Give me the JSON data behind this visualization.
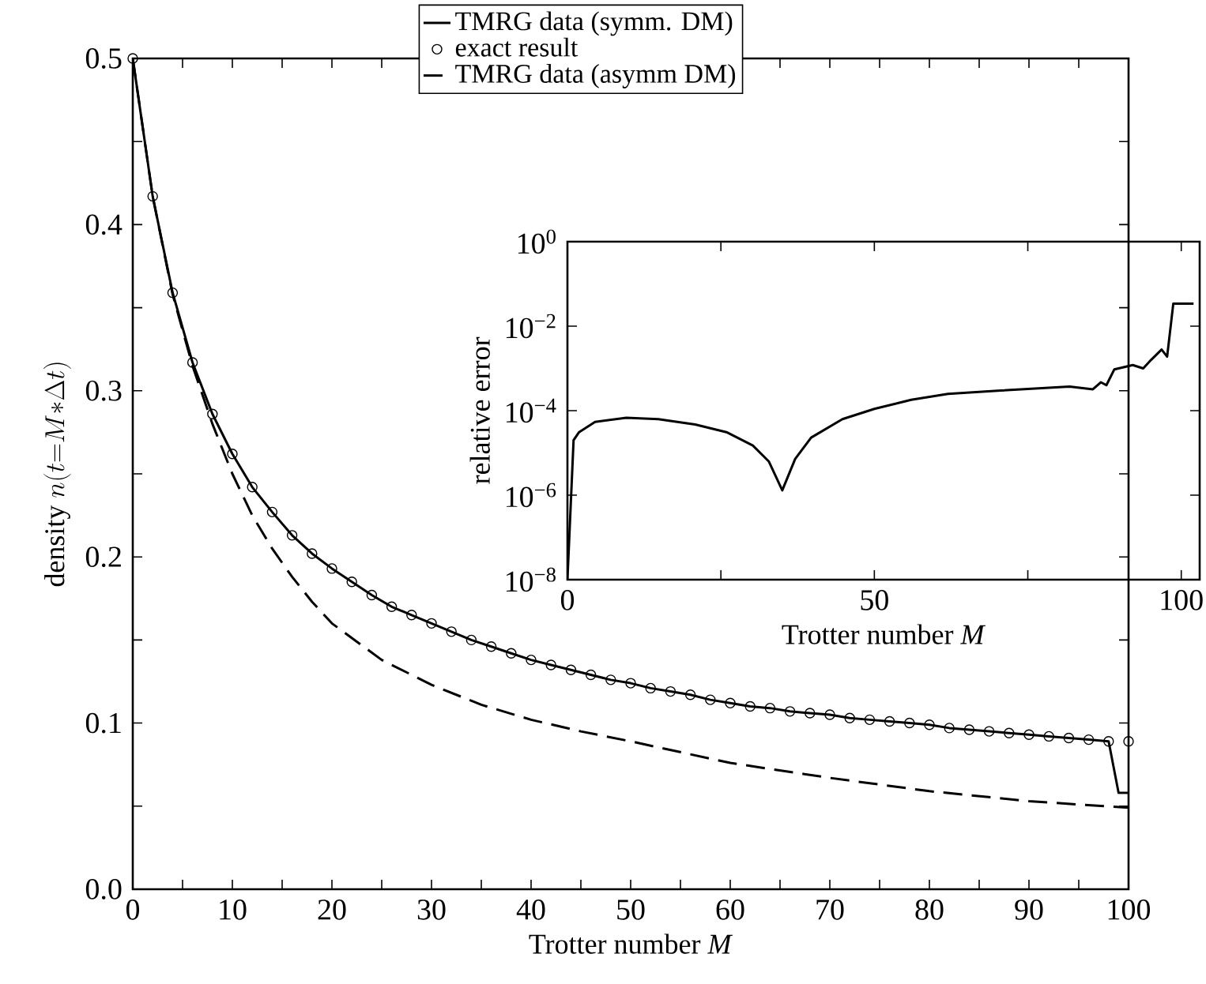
{
  "chart_data": [
    {
      "type": "line",
      "xlabel": "Trotter number *M*",
      "ylabel": "\\mathrm{density}\\ n(t{=}M{*}\\Delta t)",
      "xlim": [
        0,
        100
      ],
      "ylim": [
        0,
        0.5
      ],
      "xticks": [
        0,
        {
          "value": 5,
          "label": null
        },
        10,
        {
          "value": 15,
          "label": null
        },
        20,
        {
          "value": 25,
          "label": null
        },
        30,
        {
          "value": 35,
          "label": null
        },
        40,
        {
          "value": 45,
          "label": null
        },
        50,
        {
          "value": 55,
          "label": null
        },
        60,
        {
          "value": 65,
          "label": null
        },
        70,
        {
          "value": 75,
          "label": null
        },
        80,
        {
          "value": 85,
          "label": null
        },
        90,
        {
          "value": 95,
          "label": null
        },
        100
      ],
      "yticks": [
        {
          "value": 0,
          "label": "0.0"
        },
        {
          "value": 0.05,
          "label": null
        },
        0.1,
        {
          "value": 0.15,
          "label": null
        },
        0.2,
        {
          "value": 0.25,
          "label": null
        },
        0.3,
        {
          "value": 0.35,
          "label": null
        },
        0.4,
        {
          "value": 0.45,
          "label": null
        },
        0.5
      ],
      "legend": "top",
      "series": [
        {
          "name": "TMRG data (symm. DM)",
          "color": "#000000",
          "line_style": "solid",
          "x": [
            0,
            2,
            4,
            6,
            8,
            10,
            12,
            14,
            16,
            18,
            20,
            22,
            24,
            26,
            28,
            30,
            32,
            34,
            36,
            38,
            40,
            42,
            44,
            46,
            48,
            50,
            52,
            54,
            56,
            58,
            60,
            62,
            64,
            66,
            68,
            70,
            72,
            74,
            76,
            78,
            80,
            82,
            84,
            86,
            88,
            90,
            92,
            94,
            96,
            98,
            99,
            100
          ],
          "values": [
            0.5,
            0.417,
            0.359,
            0.317,
            0.286,
            0.262,
            0.242,
            0.227,
            0.213,
            0.202,
            0.193,
            0.185,
            0.177,
            0.17,
            0.165,
            0.16,
            0.155,
            0.15,
            0.146,
            0.142,
            0.138,
            0.135,
            0.132,
            0.129,
            0.126,
            0.124,
            0.121,
            0.119,
            0.117,
            0.114,
            0.112,
            0.11,
            0.109,
            0.107,
            0.106,
            0.105,
            0.103,
            0.102,
            0.101,
            0.1,
            0.099,
            0.097,
            0.096,
            0.095,
            0.094,
            0.093,
            0.092,
            0.091,
            0.09,
            0.089,
            0.058,
            0.058
          ]
        },
        {
          "name": "exact result",
          "type": "scatter",
          "marker": "circle",
          "color": "#000000",
          "x": [
            0,
            2,
            4,
            6,
            8,
            10,
            12,
            14,
            16,
            18,
            20,
            22,
            24,
            26,
            28,
            30,
            32,
            34,
            36,
            38,
            40,
            42,
            44,
            46,
            48,
            50,
            52,
            54,
            56,
            58,
            60,
            62,
            64,
            66,
            68,
            70,
            72,
            74,
            76,
            78,
            80,
            82,
            84,
            86,
            88,
            90,
            92,
            94,
            96,
            98,
            100
          ],
          "values": [
            0.5,
            0.417,
            0.359,
            0.317,
            0.286,
            0.262,
            0.242,
            0.227,
            0.213,
            0.202,
            0.193,
            0.185,
            0.177,
            0.17,
            0.165,
            0.16,
            0.155,
            0.15,
            0.146,
            0.142,
            0.138,
            0.135,
            0.132,
            0.129,
            0.126,
            0.124,
            0.121,
            0.119,
            0.117,
            0.114,
            0.112,
            0.11,
            0.109,
            0.107,
            0.106,
            0.105,
            0.103,
            0.102,
            0.101,
            0.1,
            0.099,
            0.097,
            0.096,
            0.095,
            0.094,
            0.093,
            0.092,
            0.091,
            0.09,
            0.089,
            0.089
          ]
        },
        {
          "name": "TMRG data (asymm DM)",
          "color": "#000000",
          "line_style": "dashed",
          "x": [
            0,
            2,
            4,
            6,
            8,
            10,
            12,
            14,
            16,
            18,
            20,
            25,
            30,
            35,
            40,
            45,
            50,
            60,
            70,
            80,
            90,
            100
          ],
          "values": [
            0.5,
            0.417,
            0.358,
            0.315,
            0.28,
            0.25,
            0.225,
            0.205,
            0.188,
            0.173,
            0.16,
            0.138,
            0.123,
            0.111,
            0.102,
            0.095,
            0.089,
            0.076,
            0.067,
            0.059,
            0.053,
            0.049
          ]
        }
      ]
    },
    {
      "type": "line",
      "xlabel": "Trotter number *M*",
      "ylabel": "relative error",
      "log": "y",
      "xlim": [
        0,
        103
      ],
      "ylim": [
        1e-08,
        1
      ],
      "xticks": [
        0,
        {
          "value": 25,
          "label": null
        },
        50,
        {
          "value": 75,
          "label": null
        },
        100
      ],
      "yticks": [
        {
          "value": 1e-08,
          "label": "10$^{−8}$"
        },
        {
          "value": 1e-06,
          "label": "10$^{−6}$"
        },
        {
          "value": 0.0001,
          "label": "10$^{−4}$"
        },
        {
          "value": 0.01,
          "label": "10$^{−2}$"
        },
        {
          "value": 1,
          "label": "10$^{0}$"
        }
      ],
      "series": [
        {
          "color": "#000000",
          "line_style": "solid",
          "x": [
            0,
            1.0,
            1.9,
            4.5,
            9.6,
            14.8,
            20.8,
            25.9,
            30.2,
            32.8,
            35,
            37.1,
            39.7,
            44.8,
            50,
            56,
            62,
            70.6,
            81.8,
            85.6,
            86.9,
            87.8,
            89.1,
            92.1,
            93.8,
            95.1,
            96.8,
            97.7,
            98.7,
            102
          ],
          "values": [
            1e-08,
            2e-05,
            3.1e-05,
            5.4e-05,
            6.8e-05,
            6.3e-05,
            4.7e-05,
            3.1e-05,
            1.5e-05,
            6.3e-06,
            1.3e-06,
            7.2e-06,
            2.3e-05,
            6.3e-05,
            0.00011,
            0.00018,
            0.00025,
            0.0003,
            0.00037,
            0.00032,
            0.00047,
            0.0004,
            0.00095,
            0.0012,
            0.001,
            0.0016,
            0.0028,
            0.0019,
            0.034,
            0.034
          ]
        }
      ]
    }
  ]
}
